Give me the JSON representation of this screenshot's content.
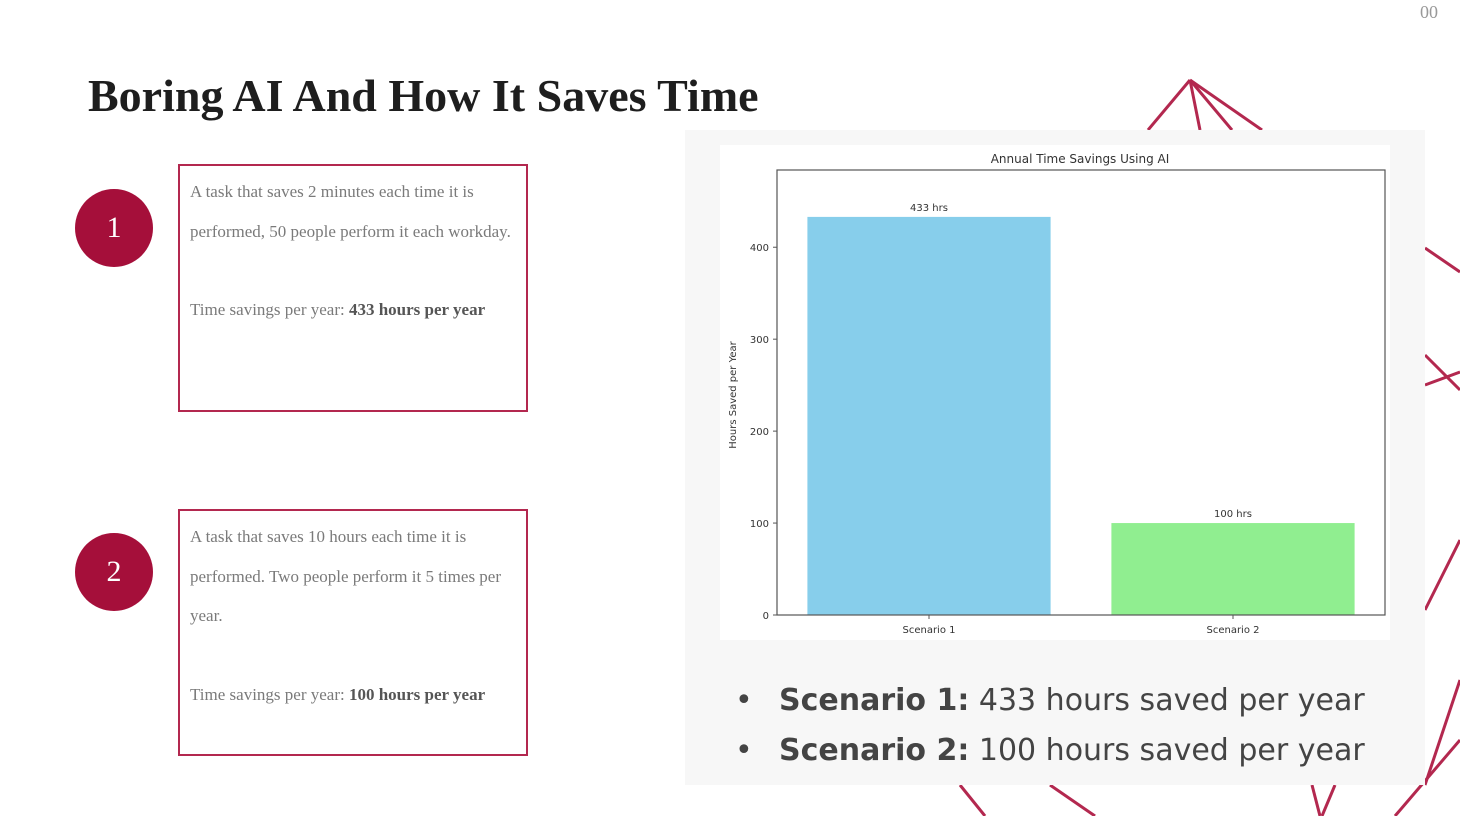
{
  "page_number": "00",
  "title": "Boring AI And How It Saves Time",
  "scenarios": [
    {
      "number": "1",
      "desc": "A task that saves 2 minutes each time it is performed, 50 people perform it each workday.",
      "savings_label": "Time savings per year: ",
      "savings_value": "433 hours per year"
    },
    {
      "number": "2",
      "desc": "A task that saves 10 hours each time it is performed. Two people perform it 5 times per year.",
      "savings_label": "Time savings per year: ",
      "savings_value": "100 hours per year"
    }
  ],
  "bullets": [
    {
      "label": "Scenario 1:",
      "text": " 433 hours saved per year"
    },
    {
      "label": "Scenario 2:",
      "text": " 100 hours saved per year"
    }
  ],
  "colors": {
    "accent": "#a50f3a"
  },
  "chart_data": {
    "type": "bar",
    "title": "Annual Time Savings Using AI",
    "xlabel": "",
    "ylabel": "Hours Saved per Year",
    "categories": [
      "Scenario 1",
      "Scenario 2"
    ],
    "values": [
      433,
      100
    ],
    "data_labels": [
      "433 hrs",
      "100 hrs"
    ],
    "colors": [
      "#87ceeb",
      "#90ee90"
    ],
    "ylim": [
      0,
      484
    ],
    "yticks": [
      0,
      100,
      200,
      300,
      400
    ],
    "grid": false
  }
}
